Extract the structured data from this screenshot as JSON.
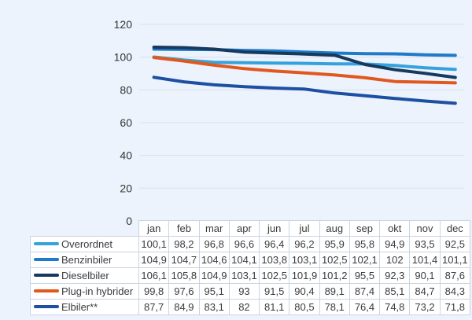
{
  "page": {
    "background": "#edf3fc"
  },
  "chart_data": {
    "type": "line",
    "title": "",
    "xlabel": "",
    "ylabel": "",
    "x_categories": [
      "jan",
      "feb",
      "mar",
      "apr",
      "jun",
      "jul",
      "aug",
      "sep",
      "okt",
      "nov",
      "dec"
    ],
    "series": [
      {
        "name": "Overordnet",
        "color": "#35a2dd",
        "values": [
          100.1,
          98.2,
          96.8,
          96.6,
          96.4,
          96.2,
          95.9,
          95.8,
          94.9,
          93.5,
          92.5
        ]
      },
      {
        "name": "Benzinbiler",
        "color": "#1f7ac9",
        "values": [
          104.9,
          104.7,
          104.6,
          104.1,
          103.8,
          103.1,
          102.5,
          102.1,
          102.0,
          101.4,
          101.1
        ]
      },
      {
        "name": "Dieselbiler",
        "color": "#16395e",
        "values": [
          106.1,
          105.8,
          104.9,
          103.1,
          102.5,
          101.9,
          101.2,
          95.5,
          92.3,
          90.1,
          87.6
        ]
      },
      {
        "name": "Plug-in hybrider",
        "color": "#e2571d",
        "values": [
          99.8,
          97.6,
          95.1,
          93.0,
          91.5,
          90.4,
          89.1,
          87.4,
          85.1,
          84.7,
          84.3
        ]
      },
      {
        "name": "Elbiler**",
        "color": "#1d4fa2",
        "values": [
          87.7,
          84.9,
          83.1,
          82.0,
          81.1,
          80.5,
          78.1,
          76.4,
          74.8,
          73.2,
          71.8
        ]
      }
    ],
    "ylim": [
      0,
      120
    ],
    "yticks": [
      "0",
      "20",
      "40",
      "60",
      "80",
      "100",
      "120"
    ],
    "grid": true,
    "legend_position": "table-left-column",
    "styles": {
      "gridline_color": "#dde4ef",
      "axis_label_color": "#333333",
      "line_width": 4
    }
  },
  "table": {
    "columns": [
      "jan",
      "feb",
      "mar",
      "apr",
      "jun",
      "jul",
      "aug",
      "sep",
      "okt",
      "nov",
      "dec"
    ],
    "rows": [
      {
        "label": "Overordnet",
        "color": "#35a2dd",
        "values": [
          "100,1",
          "98,2",
          "96,8",
          "96,6",
          "96,4",
          "96,2",
          "95,9",
          "95,8",
          "94,9",
          "93,5",
          "92,5"
        ]
      },
      {
        "label": "Benzinbiler",
        "color": "#1f7ac9",
        "values": [
          "104,9",
          "104,7",
          "104,6",
          "104,1",
          "103,8",
          "103,1",
          "102,5",
          "102,1",
          "102",
          "101,4",
          "101,1"
        ]
      },
      {
        "label": "Dieselbiler",
        "color": "#16395e",
        "values": [
          "106,1",
          "105,8",
          "104,9",
          "103,1",
          "102,5",
          "101,9",
          "101,2",
          "95,5",
          "92,3",
          "90,1",
          "87,6"
        ]
      },
      {
        "label": "Plug-in hybrider",
        "color": "#e2571d",
        "values": [
          "99,8",
          "97,6",
          "95,1",
          "93",
          "91,5",
          "90,4",
          "89,1",
          "87,4",
          "85,1",
          "84,7",
          "84,3"
        ]
      },
      {
        "label": "Elbiler**",
        "color": "#1d4fa2",
        "values": [
          "87,7",
          "84,9",
          "83,1",
          "82",
          "81,1",
          "80,5",
          "78,1",
          "76,4",
          "74,8",
          "73,2",
          "71,8"
        ]
      }
    ],
    "styles": {
      "border_color": "#c8d4e2",
      "cell_background": "#ffffff",
      "text_color": "#3b3b3b"
    }
  }
}
